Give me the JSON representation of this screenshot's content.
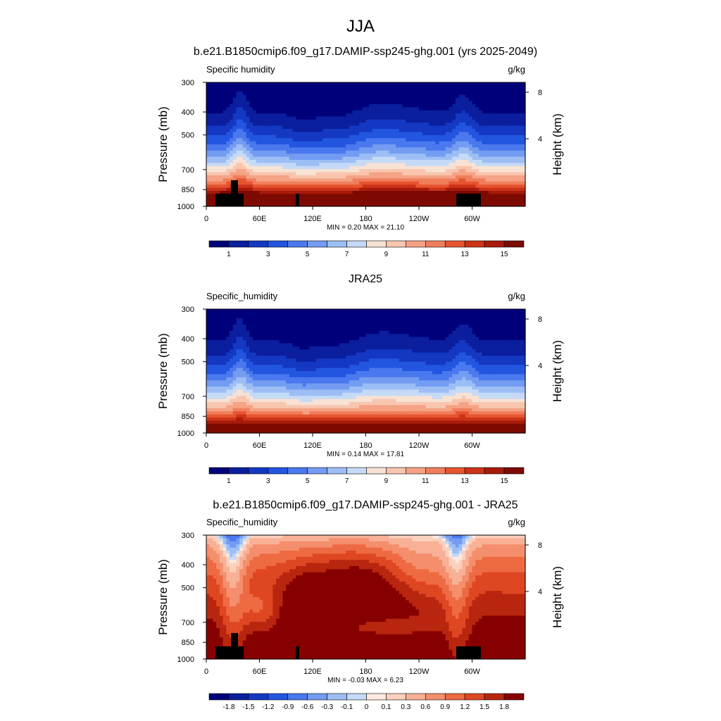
{
  "figure": {
    "title": "JJA"
  },
  "chart_data": [
    {
      "type": "heatmap",
      "title": "b.e21.B1850cmip6.f09_g17.DAMIP-ssp245-ghg.001 (yrs 2025-2049)",
      "left_label": "Specific humidity",
      "units": "g/kg",
      "ylabel": "Pressure (mb)",
      "y2label": "Height (km)",
      "x_ticks": [
        "0",
        "60E",
        "120E",
        "180",
        "120W",
        "60W"
      ],
      "y_ticks": [
        "300",
        "400",
        "500",
        "700",
        "850",
        "1000"
      ],
      "y2_ticks": [
        "8",
        "4"
      ],
      "stats": "MIN =   0.20  MAX =  21.10",
      "colorbar_labels": [
        "1",
        "3",
        "5",
        "7",
        "9",
        "11",
        "13",
        "15"
      ],
      "value_range": [
        0.2,
        21.1
      ],
      "mask_bottom": true
    },
    {
      "type": "heatmap",
      "title": "JRA25",
      "left_label": "Specific_humidity",
      "units": "g/kg",
      "ylabel": "Pressure (mb)",
      "y2label": "Height (km)",
      "x_ticks": [
        "0",
        "60E",
        "120E",
        "180",
        "120W",
        "60W"
      ],
      "y_ticks": [
        "300",
        "400",
        "500",
        "700",
        "850",
        "1000"
      ],
      "y2_ticks": [
        "8",
        "4"
      ],
      "stats": "MIN =   0.14  MAX =  17.81",
      "colorbar_labels": [
        "1",
        "3",
        "5",
        "7",
        "9",
        "11",
        "13",
        "15"
      ],
      "value_range": [
        0.14,
        17.81
      ],
      "mask_bottom": false
    },
    {
      "type": "heatmap",
      "title": "b.e21.B1850cmip6.f09_g17.DAMIP-ssp245-ghg.001 - JRA25",
      "left_label": "Specific_humidity",
      "units": "g/kg",
      "ylabel": "Pressure (mb)",
      "y2label": "Height (km)",
      "x_ticks": [
        "0",
        "60E",
        "120E",
        "180",
        "120W",
        "60W"
      ],
      "y_ticks": [
        "300",
        "400",
        "500",
        "700",
        "850",
        "1000"
      ],
      "y2_ticks": [
        "8",
        "4"
      ],
      "stats": "MIN =  -0.03  MAX =   6.23",
      "colorbar_labels": [
        "-1.8",
        "-1.5",
        "-1.2",
        "-0.9",
        "-0.6",
        "-0.3",
        "-0.1",
        "0",
        "0.1",
        "0.3",
        "0.6",
        "0.9",
        "1.2",
        "1.5",
        "1.8"
      ],
      "value_range": [
        -0.03,
        6.23
      ],
      "mask_bottom": true
    }
  ],
  "colors": {
    "abs_scale": [
      "#00007a",
      "#0a1e9e",
      "#1438c2",
      "#2255e0",
      "#4a78ee",
      "#739cf2",
      "#9dbef5",
      "#c5daf7",
      "#f7e2d4",
      "#f8c5ae",
      "#f5a285",
      "#f07e5c",
      "#e65530",
      "#cc3318",
      "#a81b0b",
      "#7d0a00"
    ],
    "diff_scale": [
      "#00007a",
      "#0a1e9e",
      "#1438c2",
      "#2255e0",
      "#4a78ee",
      "#739cf2",
      "#9dbef5",
      "#c5daf7",
      "#fde9df",
      "#fbd0bd",
      "#f8b196",
      "#f58e6c",
      "#ee6a42",
      "#de4722",
      "#b9260f",
      "#870000"
    ],
    "mask": "#000000"
  }
}
